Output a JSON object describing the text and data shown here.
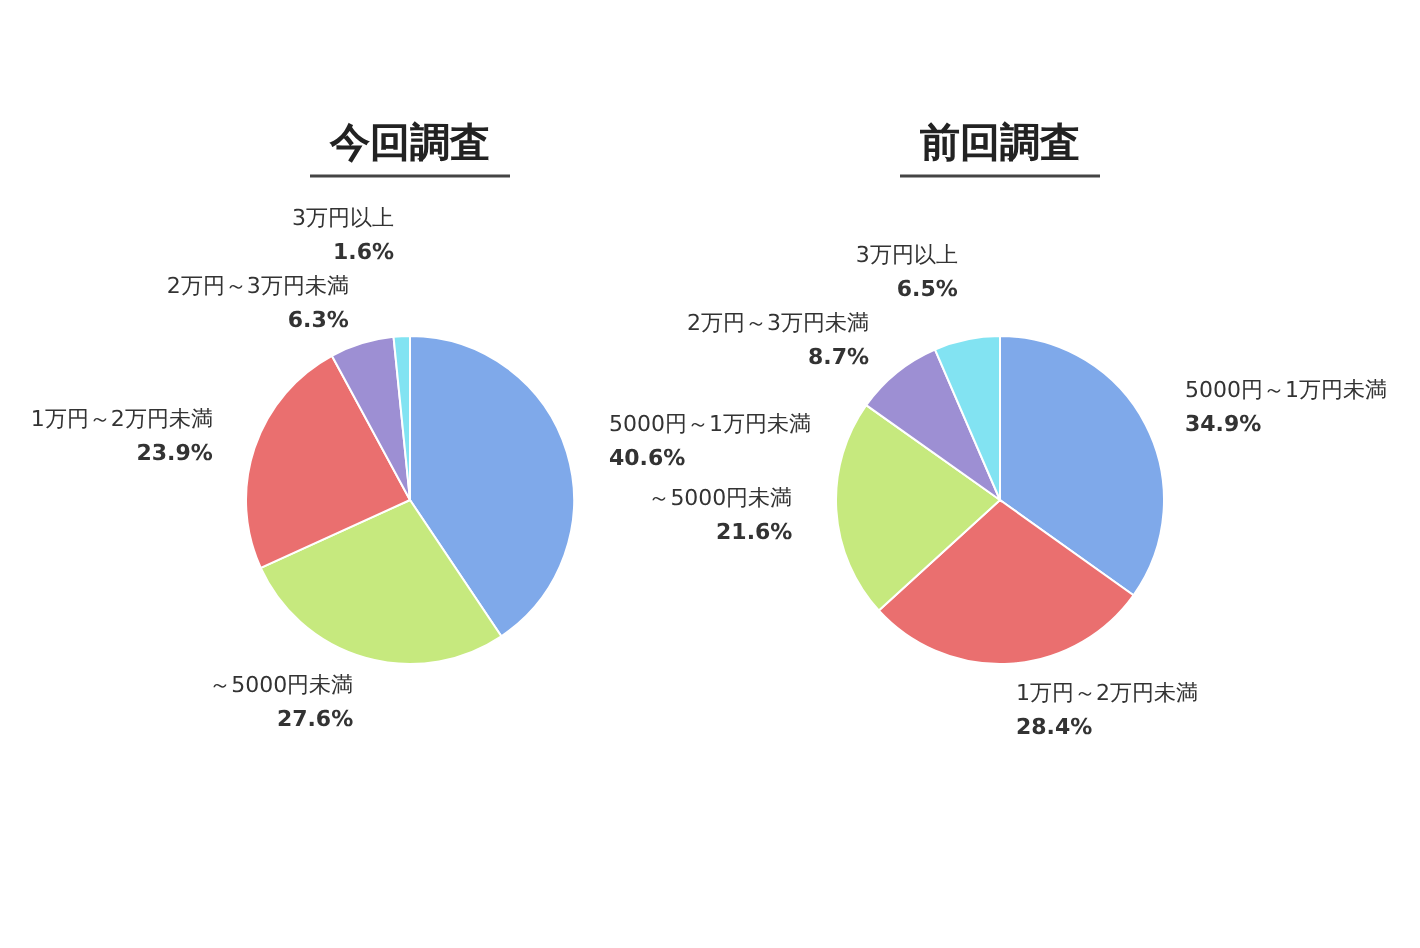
{
  "chart_data": [
    {
      "type": "pie",
      "title": "今回調査",
      "categories": [
        "5000円～1万円未満",
        "～5000円未満",
        "1万円～2万円未満",
        "2万円～3万円未満",
        "3万円以上"
      ],
      "values": [
        40.6,
        27.6,
        23.9,
        6.3,
        1.6
      ],
      "colors": [
        "#7fa9ea",
        "#c6e97e",
        "#ea6f6f",
        "#9d8fd3",
        "#82e3f2"
      ],
      "value_labels": [
        "40.6%",
        "27.6%",
        "23.9%",
        "6.3%",
        "1.6%"
      ]
    },
    {
      "type": "pie",
      "title": "前回調査",
      "categories": [
        "5000円～1万円未満",
        "1万円～2万円未満",
        "～5000円未満",
        "2万円～3万円未満",
        "3万円以上"
      ],
      "values": [
        34.9,
        28.4,
        21.6,
        8.7,
        6.5
      ],
      "colors": [
        "#7fa9ea",
        "#ea6f6f",
        "#c6e97e",
        "#9d8fd3",
        "#82e3f2"
      ],
      "value_labels": [
        "34.9%",
        "28.4%",
        "21.6%",
        "8.7%",
        "6.5%"
      ]
    }
  ]
}
